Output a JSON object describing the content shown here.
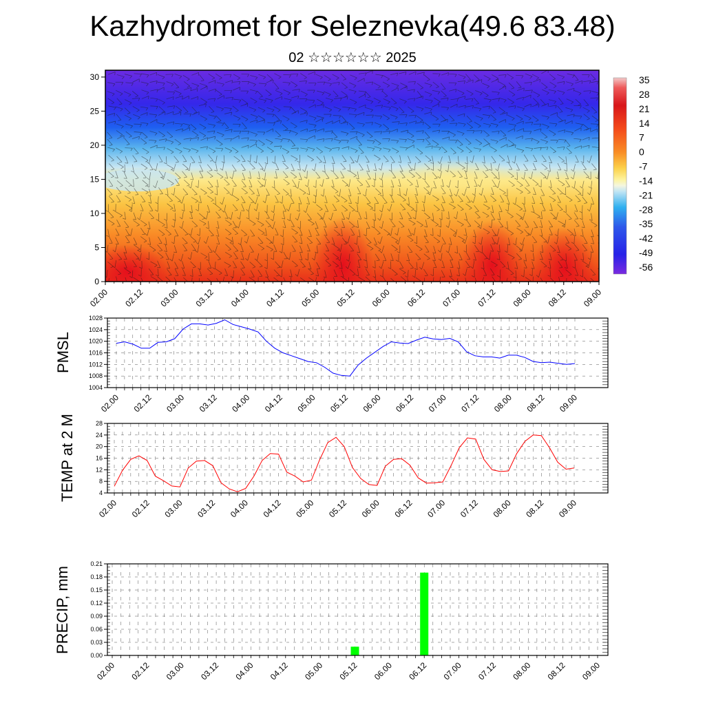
{
  "header": {
    "title": "Kazhydromet for Seleznevka(49.6 83.48)",
    "subtitle": "02 ☆☆☆☆☆☆ 2025"
  },
  "chart_data": [
    {
      "type": "heatmap",
      "title": "",
      "x_ticks": [
        "02.00",
        "02.12",
        "03.00",
        "03.12",
        "04.00",
        "04.12",
        "05.00",
        "05.12",
        "06.00",
        "06.12",
        "07.00",
        "07.12",
        "08.00",
        "08.12",
        "09.00"
      ],
      "y_ticks": [
        "0",
        "5",
        "10",
        "15",
        "20",
        "25",
        "30"
      ],
      "ylim": [
        0,
        31
      ],
      "colorbar_labels": [
        "35",
        "28",
        "21",
        "14",
        "7",
        "0",
        "-7",
        "-14",
        "-21",
        "-28",
        "-35",
        "-42",
        "-49",
        "-56"
      ],
      "colors": {
        "hot": "#e8161a",
        "warm": "#f57d1f",
        "mild": "#fcd956",
        "cool": "#bfe2f5",
        "cold": "#1e62f0",
        "frigid": "#6a22e6"
      }
    },
    {
      "type": "line",
      "ylabel": "PMSL",
      "x_ticks": [
        "02.00",
        "02.12",
        "03.00",
        "03.12",
        "04.00",
        "04.12",
        "05.00",
        "05.12",
        "06.00",
        "06.12",
        "07.00",
        "07.12",
        "08.00",
        "08.12",
        "09.00"
      ],
      "y_ticks": [
        "1004",
        "1008",
        "1012",
        "1016",
        "1020",
        "1024",
        "1028"
      ],
      "ylim": [
        1004,
        1028
      ],
      "color": "#0000ff",
      "values": [
        1019.3,
        1019.8,
        1019.0,
        1017.6,
        1017.6,
        1019.6,
        1019.8,
        1020.9,
        1024.2,
        1026.0,
        1026.0,
        1025.6,
        1026.2,
        1027.4,
        1025.8,
        1025.0,
        1024.2,
        1023.2,
        1020.0,
        1017.6,
        1016.0,
        1015.0,
        1014.0,
        1013.0,
        1012.6,
        1011.0,
        1009.0,
        1008.2,
        1008.0,
        1011.8,
        1014.2,
        1016.2,
        1018.2,
        1019.8,
        1019.4,
        1019.2,
        1020.4,
        1021.4,
        1020.8,
        1020.6,
        1021.0,
        1019.8,
        1016.4,
        1015.0,
        1014.6,
        1014.6,
        1014.2,
        1015.2,
        1015.2,
        1014.4,
        1013.0,
        1012.6,
        1012.8,
        1012.4,
        1012.0,
        1012.3
      ]
    },
    {
      "type": "line",
      "ylabel": "TEMP at 2 M",
      "x_ticks": [
        "02.00",
        "02.12",
        "03.00",
        "03.12",
        "04.00",
        "04.12",
        "05.00",
        "05.12",
        "06.00",
        "06.12",
        "07.00",
        "07.12",
        "08.00",
        "08.12",
        "09.00"
      ],
      "y_ticks": [
        "4",
        "8",
        "12",
        "16",
        "20",
        "24",
        "28"
      ],
      "ylim": [
        4,
        28
      ],
      "color": "#ff0000",
      "values": [
        6.3,
        11.8,
        15.6,
        16.8,
        15.2,
        9.8,
        8.2,
        6.4,
        6.1,
        12.6,
        15.0,
        15.2,
        13.4,
        7.5,
        5.4,
        4.4,
        5.6,
        9.8,
        15.2,
        17.6,
        17.4,
        11.2,
        9.8,
        7.8,
        8.4,
        15.4,
        21.4,
        23.2,
        20.0,
        12.8,
        9.0,
        6.9,
        6.6,
        13.2,
        15.6,
        15.8,
        13.6,
        9.2,
        7.4,
        7.5,
        7.8,
        13.4,
        19.6,
        23.0,
        22.6,
        15.6,
        12.0,
        11.4,
        11.6,
        17.6,
        21.8,
        24.0,
        23.8,
        19.6,
        14.6,
        12.2,
        12.6
      ]
    },
    {
      "type": "bar",
      "ylabel": "PRECIP, mm",
      "x_ticks": [
        "02.00",
        "02.12",
        "03.00",
        "03.12",
        "04.00",
        "04.12",
        "05.00",
        "05.12",
        "06.00",
        "06.12",
        "07.00",
        "07.12",
        "08.00",
        "08.12",
        "09.00"
      ],
      "y_ticks": [
        "0.00",
        "0.03",
        "0.06",
        "0.09",
        "0.12",
        "0.15",
        "0.18",
        "0.21"
      ],
      "ylim": [
        0,
        0.21
      ],
      "color": "#00ff00",
      "bars": [
        {
          "x": "05.12",
          "value": 0.02
        },
        {
          "x": "06.12",
          "value": 0.19
        }
      ]
    }
  ]
}
